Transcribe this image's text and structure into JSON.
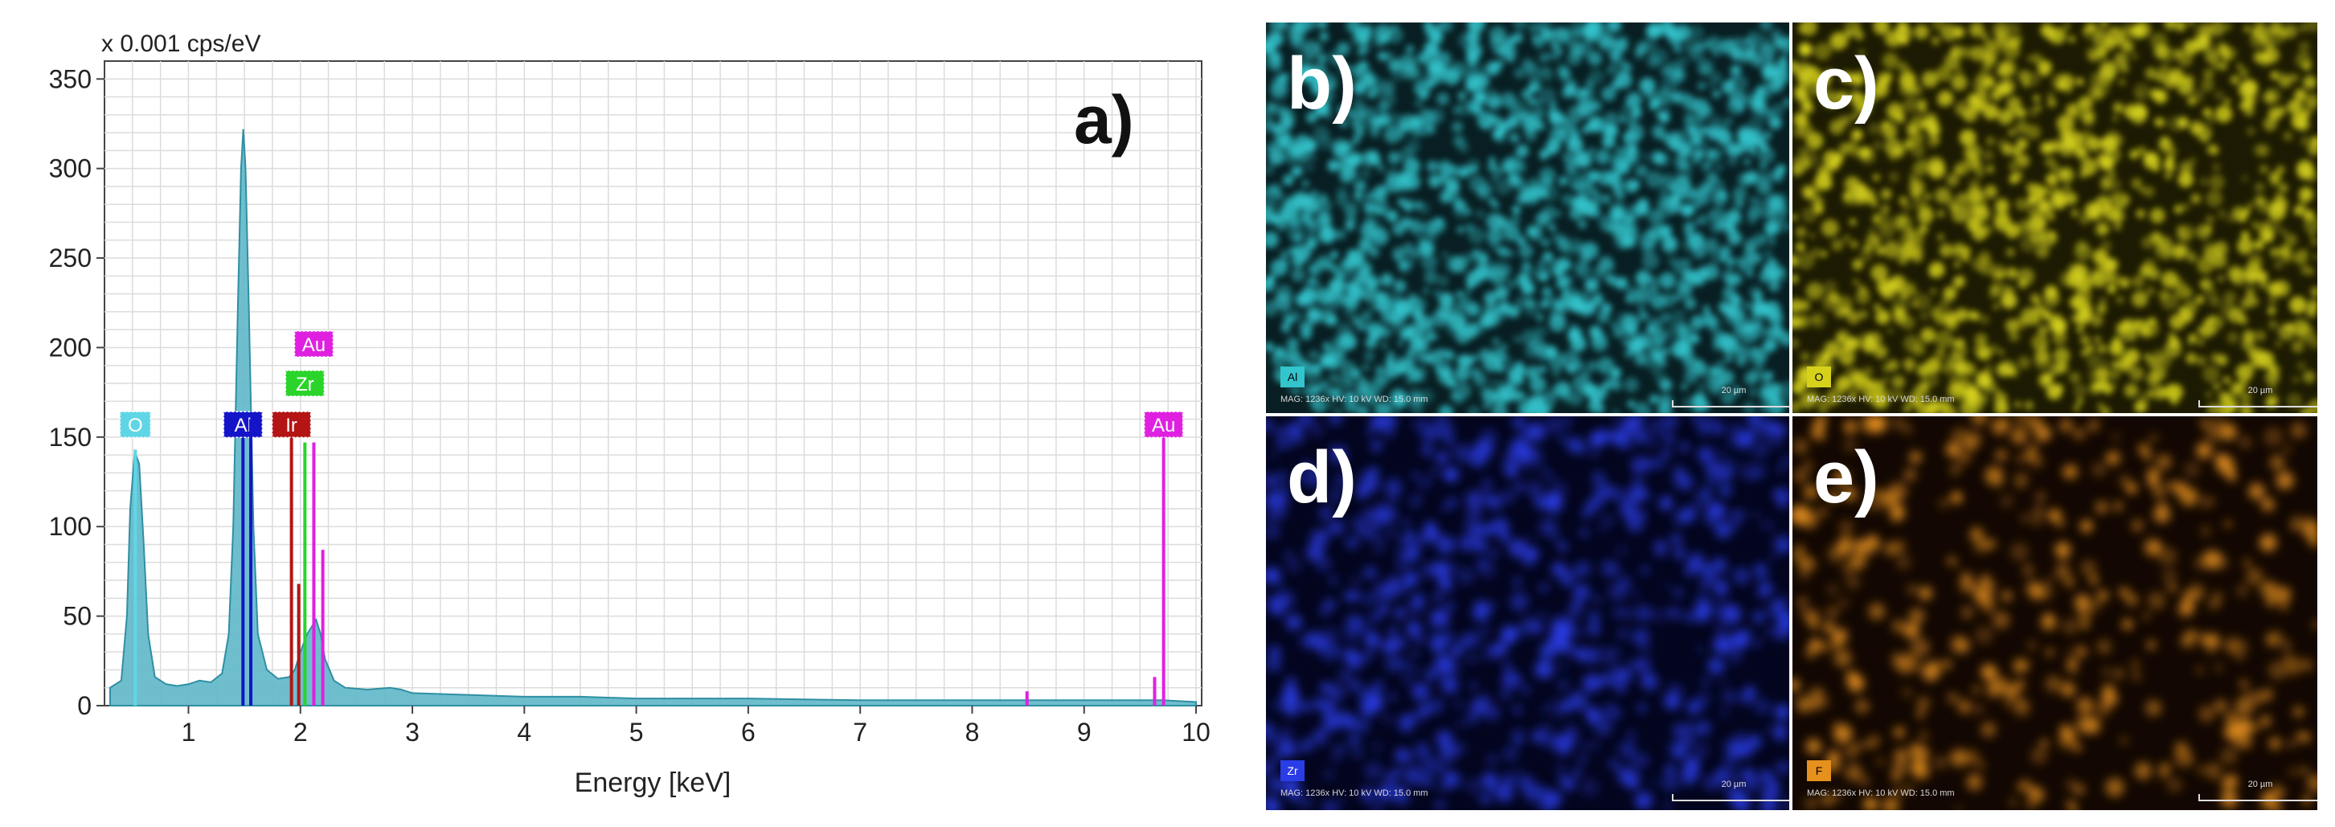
{
  "chart_data": {
    "type": "line",
    "panel_label": "a)",
    "ylabel": "x 0.001 cps/eV",
    "xlabel": "Energy [keV]",
    "xlim": [
      0.25,
      10.05
    ],
    "ylim": [
      0,
      360
    ],
    "x_ticks": [
      1,
      2,
      3,
      4,
      5,
      6,
      7,
      8,
      9,
      10
    ],
    "y_ticks": [
      0,
      50,
      100,
      150,
      200,
      250,
      300,
      350
    ],
    "grid": true,
    "spectrum_color": "#5fb7c9",
    "spectrum": [
      [
        0.3,
        10
      ],
      [
        0.4,
        14
      ],
      [
        0.45,
        50
      ],
      [
        0.48,
        110
      ],
      [
        0.52,
        142
      ],
      [
        0.56,
        135
      ],
      [
        0.6,
        90
      ],
      [
        0.64,
        40
      ],
      [
        0.7,
        16
      ],
      [
        0.8,
        12
      ],
      [
        0.9,
        11
      ],
      [
        1.0,
        12
      ],
      [
        1.1,
        14
      ],
      [
        1.2,
        13
      ],
      [
        1.3,
        18
      ],
      [
        1.36,
        40
      ],
      [
        1.4,
        100
      ],
      [
        1.44,
        220
      ],
      [
        1.47,
        300
      ],
      [
        1.49,
        322
      ],
      [
        1.51,
        300
      ],
      [
        1.54,
        220
      ],
      [
        1.58,
        100
      ],
      [
        1.62,
        40
      ],
      [
        1.7,
        20
      ],
      [
        1.8,
        15
      ],
      [
        1.9,
        16
      ],
      [
        1.95,
        20
      ],
      [
        2.0,
        30
      ],
      [
        2.06,
        40
      ],
      [
        2.1,
        44
      ],
      [
        2.14,
        48
      ],
      [
        2.18,
        40
      ],
      [
        2.22,
        26
      ],
      [
        2.3,
        14
      ],
      [
        2.4,
        10
      ],
      [
        2.6,
        9
      ],
      [
        2.8,
        10
      ],
      [
        2.9,
        9
      ],
      [
        3.0,
        7
      ],
      [
        3.5,
        6
      ],
      [
        4.0,
        5
      ],
      [
        4.5,
        5
      ],
      [
        5.0,
        4
      ],
      [
        6.0,
        4
      ],
      [
        7.0,
        3
      ],
      [
        8.0,
        3
      ],
      [
        9.0,
        3
      ],
      [
        9.7,
        3
      ],
      [
        10.0,
        2
      ]
    ],
    "element_markers": [
      {
        "label": "O",
        "energy": 0.525,
        "height": 143,
        "color": "#5fd6e6",
        "label_y": 157
      },
      {
        "label": "Al",
        "energy": 1.487,
        "height": 160,
        "color": "#1414c8",
        "label_y": 157
      },
      {
        "label": "Al",
        "energy": 1.557,
        "height": 160,
        "color": "#1414c8",
        "label_y": null
      },
      {
        "label": "Ir",
        "energy": 1.92,
        "height": 150,
        "color": "#b41414",
        "label_y": 157
      },
      {
        "label": "Zr",
        "energy": 2.04,
        "height": 147,
        "color": "#2ad42a",
        "label_y": 180
      },
      {
        "label": "Au",
        "energy": 2.12,
        "height": 147,
        "color": "#e020e0",
        "label_y": 202
      },
      {
        "label": "",
        "energy": 2.2,
        "height": 87,
        "color": "#e020e0",
        "label_y": null
      },
      {
        "label": "",
        "energy": 1.985,
        "height": 68,
        "color": "#b41414",
        "label_y": null
      },
      {
        "label": "",
        "energy": 8.49,
        "height": 8,
        "color": "#e020e0",
        "label_y": null
      },
      {
        "label": "",
        "energy": 9.63,
        "height": 16,
        "color": "#e020e0",
        "label_y": null
      },
      {
        "label": "Au",
        "energy": 9.71,
        "height": 150,
        "color": "#e020e0",
        "label_y": 157
      }
    ]
  },
  "maps": [
    {
      "id": "b",
      "label": "b)",
      "element": "Al",
      "color": "#33c4cc",
      "base": "#081e22",
      "badge_color": "#33c4cc",
      "scale": "20 µm"
    },
    {
      "id": "c",
      "label": "c)",
      "element": "O",
      "color": "#d6d21c",
      "base": "#1c1a02",
      "badge_color": "#d6d21c",
      "scale": "20 µm"
    },
    {
      "id": "d",
      "label": "d)",
      "element": "Zr",
      "color": "#2a3ce6",
      "base": "#03051e",
      "badge_color": "#2a3ce6",
      "scale": "20 µm"
    },
    {
      "id": "e",
      "label": "e)",
      "element": "F",
      "color": "#e6901e",
      "base": "#120702",
      "badge_color": "#e6901e",
      "scale": "20 µm"
    }
  ],
  "map_info": "MAG: 1236x   HV: 10 kV   WD: 15.0 mm"
}
